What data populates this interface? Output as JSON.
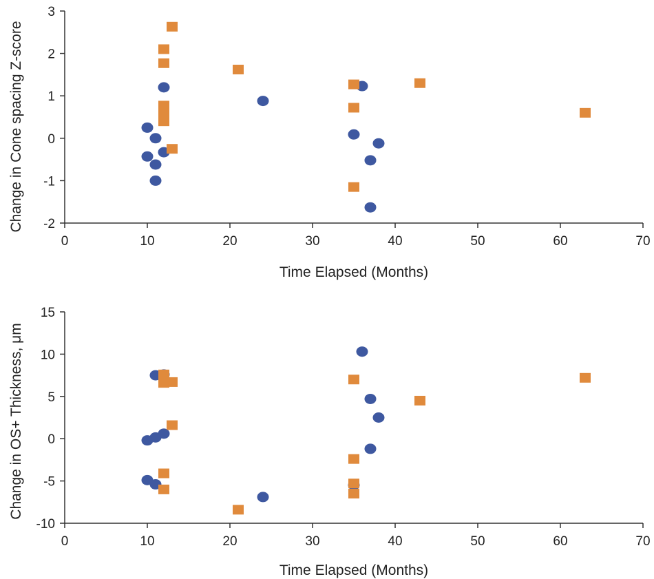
{
  "colors": {
    "series_circle": "#3e58a0",
    "series_square": "#e08a3c"
  },
  "chart_data": [
    {
      "type": "scatter",
      "xlabel": "Time Elapsed (Months)",
      "ylabel": "Change in Cone spacing Z-score",
      "xlim": [
        0,
        70
      ],
      "ylim": [
        -2,
        3
      ],
      "xticks": [
        0,
        10,
        20,
        30,
        40,
        50,
        60,
        70
      ],
      "yticks": [
        -2,
        -1,
        0,
        1,
        2,
        3
      ],
      "grid": false,
      "series": [
        {
          "marker": "circle",
          "color": "#3e58a0",
          "points": [
            [
              10,
              0.25
            ],
            [
              10,
              -0.43
            ],
            [
              11,
              0.0
            ],
            [
              11,
              -0.62
            ],
            [
              11,
              -1.0
            ],
            [
              12,
              1.2
            ],
            [
              12,
              -0.33
            ],
            [
              24,
              0.88
            ],
            [
              35,
              0.09
            ],
            [
              36,
              1.23
            ],
            [
              37,
              -0.52
            ],
            [
              37,
              -1.63
            ],
            [
              38,
              -0.12
            ]
          ]
        },
        {
          "marker": "square",
          "color": "#e08a3c",
          "points": [
            [
              12,
              2.1
            ],
            [
              12,
              1.77
            ],
            [
              12,
              0.77
            ],
            [
              12,
              0.65
            ],
            [
              12,
              0.52
            ],
            [
              12,
              0.4
            ],
            [
              13,
              2.63
            ],
            [
              13,
              -0.25
            ],
            [
              21,
              1.62
            ],
            [
              35,
              1.27
            ],
            [
              35,
              0.72
            ],
            [
              35,
              -1.15
            ],
            [
              43,
              1.3
            ],
            [
              63,
              0.6
            ]
          ]
        }
      ]
    },
    {
      "type": "scatter",
      "xlabel": "Time Elapsed (Months)",
      "ylabel": "Change in OS+ Thickness, μm",
      "xlim": [
        0,
        70
      ],
      "ylim": [
        -10,
        15
      ],
      "xticks": [
        0,
        10,
        20,
        30,
        40,
        50,
        60,
        70
      ],
      "yticks": [
        -10,
        -5,
        0,
        5,
        10,
        15
      ],
      "grid": false,
      "series": [
        {
          "marker": "circle",
          "color": "#3e58a0",
          "points": [
            [
              10,
              -0.2
            ],
            [
              10,
              -4.9
            ],
            [
              11,
              7.5
            ],
            [
              11,
              0.15
            ],
            [
              11,
              -5.4
            ],
            [
              12,
              7.6
            ],
            [
              12,
              0.6
            ],
            [
              24,
              -6.9
            ],
            [
              35,
              -5.5
            ],
            [
              36,
              10.3
            ],
            [
              37,
              4.7
            ],
            [
              37,
              -1.2
            ],
            [
              38,
              2.5
            ]
          ]
        },
        {
          "marker": "square",
          "color": "#e08a3c",
          "points": [
            [
              12,
              7.6
            ],
            [
              12,
              6.6
            ],
            [
              12,
              -4.1
            ],
            [
              12,
              -6.0
            ],
            [
              13,
              6.7
            ],
            [
              13,
              1.6
            ],
            [
              21,
              -8.4
            ],
            [
              35,
              7.0
            ],
            [
              35,
              -2.4
            ],
            [
              35,
              -5.3
            ],
            [
              35,
              -6.5
            ],
            [
              43,
              4.5
            ],
            [
              63,
              7.2
            ]
          ]
        }
      ]
    }
  ]
}
